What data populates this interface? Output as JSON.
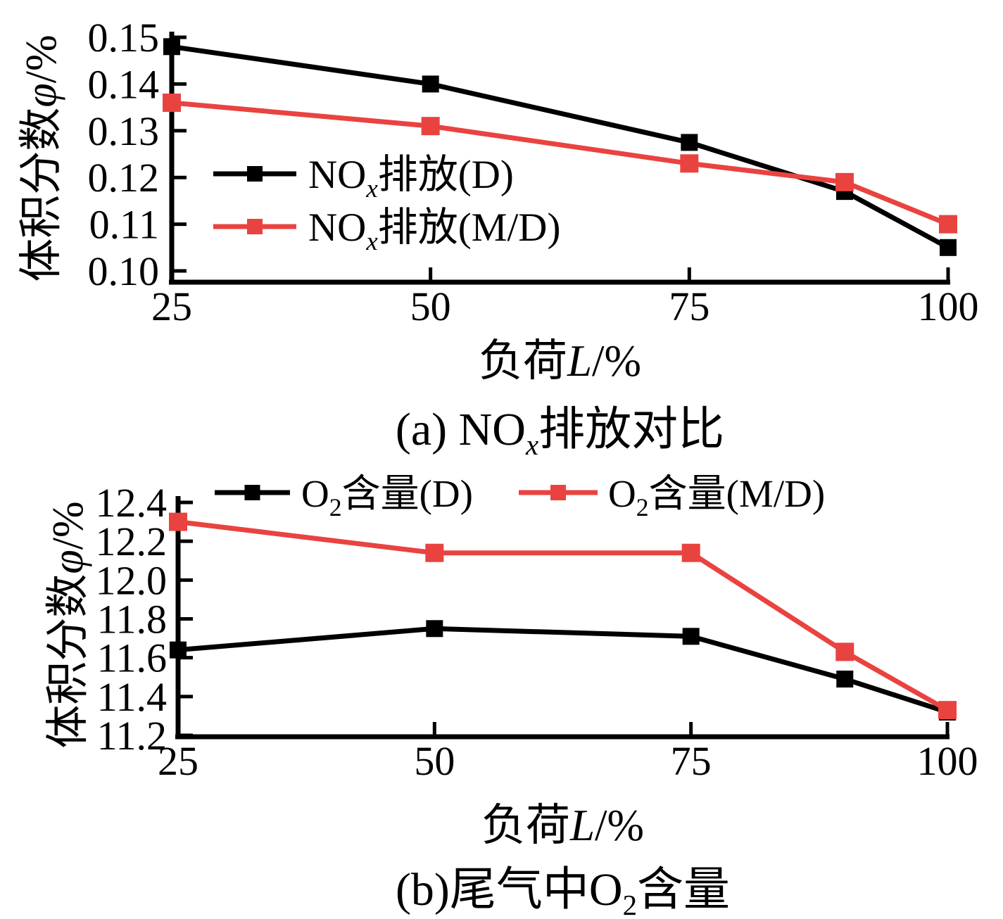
{
  "page": {
    "background": "#ffffff"
  },
  "colors": {
    "series_d": "#000000",
    "series_md": "#e94340",
    "axis": "#000000"
  },
  "chart_data": [
    {
      "type": "line",
      "panel": "a",
      "caption": "(a) NOₓ排放对比",
      "xlabel": "负荷L/%",
      "ylabel": "体积分数φ/%",
      "xlim": [
        25,
        100
      ],
      "xticks": [
        25,
        50,
        75,
        100
      ],
      "ylim": [
        0.1,
        0.15
      ],
      "yticks": [
        "0.10",
        "0.11",
        "0.12",
        "0.13",
        "0.14",
        "0.15"
      ],
      "grid": false,
      "legend_position": "inside-left",
      "x": [
        25,
        50,
        75,
        90,
        100
      ],
      "series": [
        {
          "name": "NOₓ排放(D)",
          "color": "#000000",
          "values": [
            0.148,
            0.14,
            0.1275,
            0.117,
            0.105
          ]
        },
        {
          "name": "NOₓ排放(M/D)",
          "color": "#e94340",
          "values": [
            0.136,
            0.131,
            0.123,
            0.119,
            0.11
          ]
        }
      ]
    },
    {
      "type": "line",
      "panel": "b",
      "caption": "(b)尾气中O₂含量",
      "xlabel": "负荷L/%",
      "ylabel": "体积分数φ/%",
      "xlim": [
        25,
        100
      ],
      "xticks": [
        25,
        50,
        75,
        100
      ],
      "ylim": [
        11.2,
        12.4
      ],
      "yticks": [
        "11.2",
        "11.4",
        "11.6",
        "11.8",
        "12.0",
        "12.2",
        "12.4"
      ],
      "grid": false,
      "legend_position": "top",
      "x": [
        25,
        50,
        75,
        90,
        100
      ],
      "series": [
        {
          "name": "O₂含量(D)",
          "color": "#000000",
          "values": [
            11.64,
            11.75,
            11.71,
            11.49,
            11.32
          ]
        },
        {
          "name": "O₂含量(M/D)",
          "color": "#e94340",
          "values": [
            12.3,
            12.14,
            12.14,
            11.63,
            11.33
          ]
        }
      ]
    }
  ]
}
